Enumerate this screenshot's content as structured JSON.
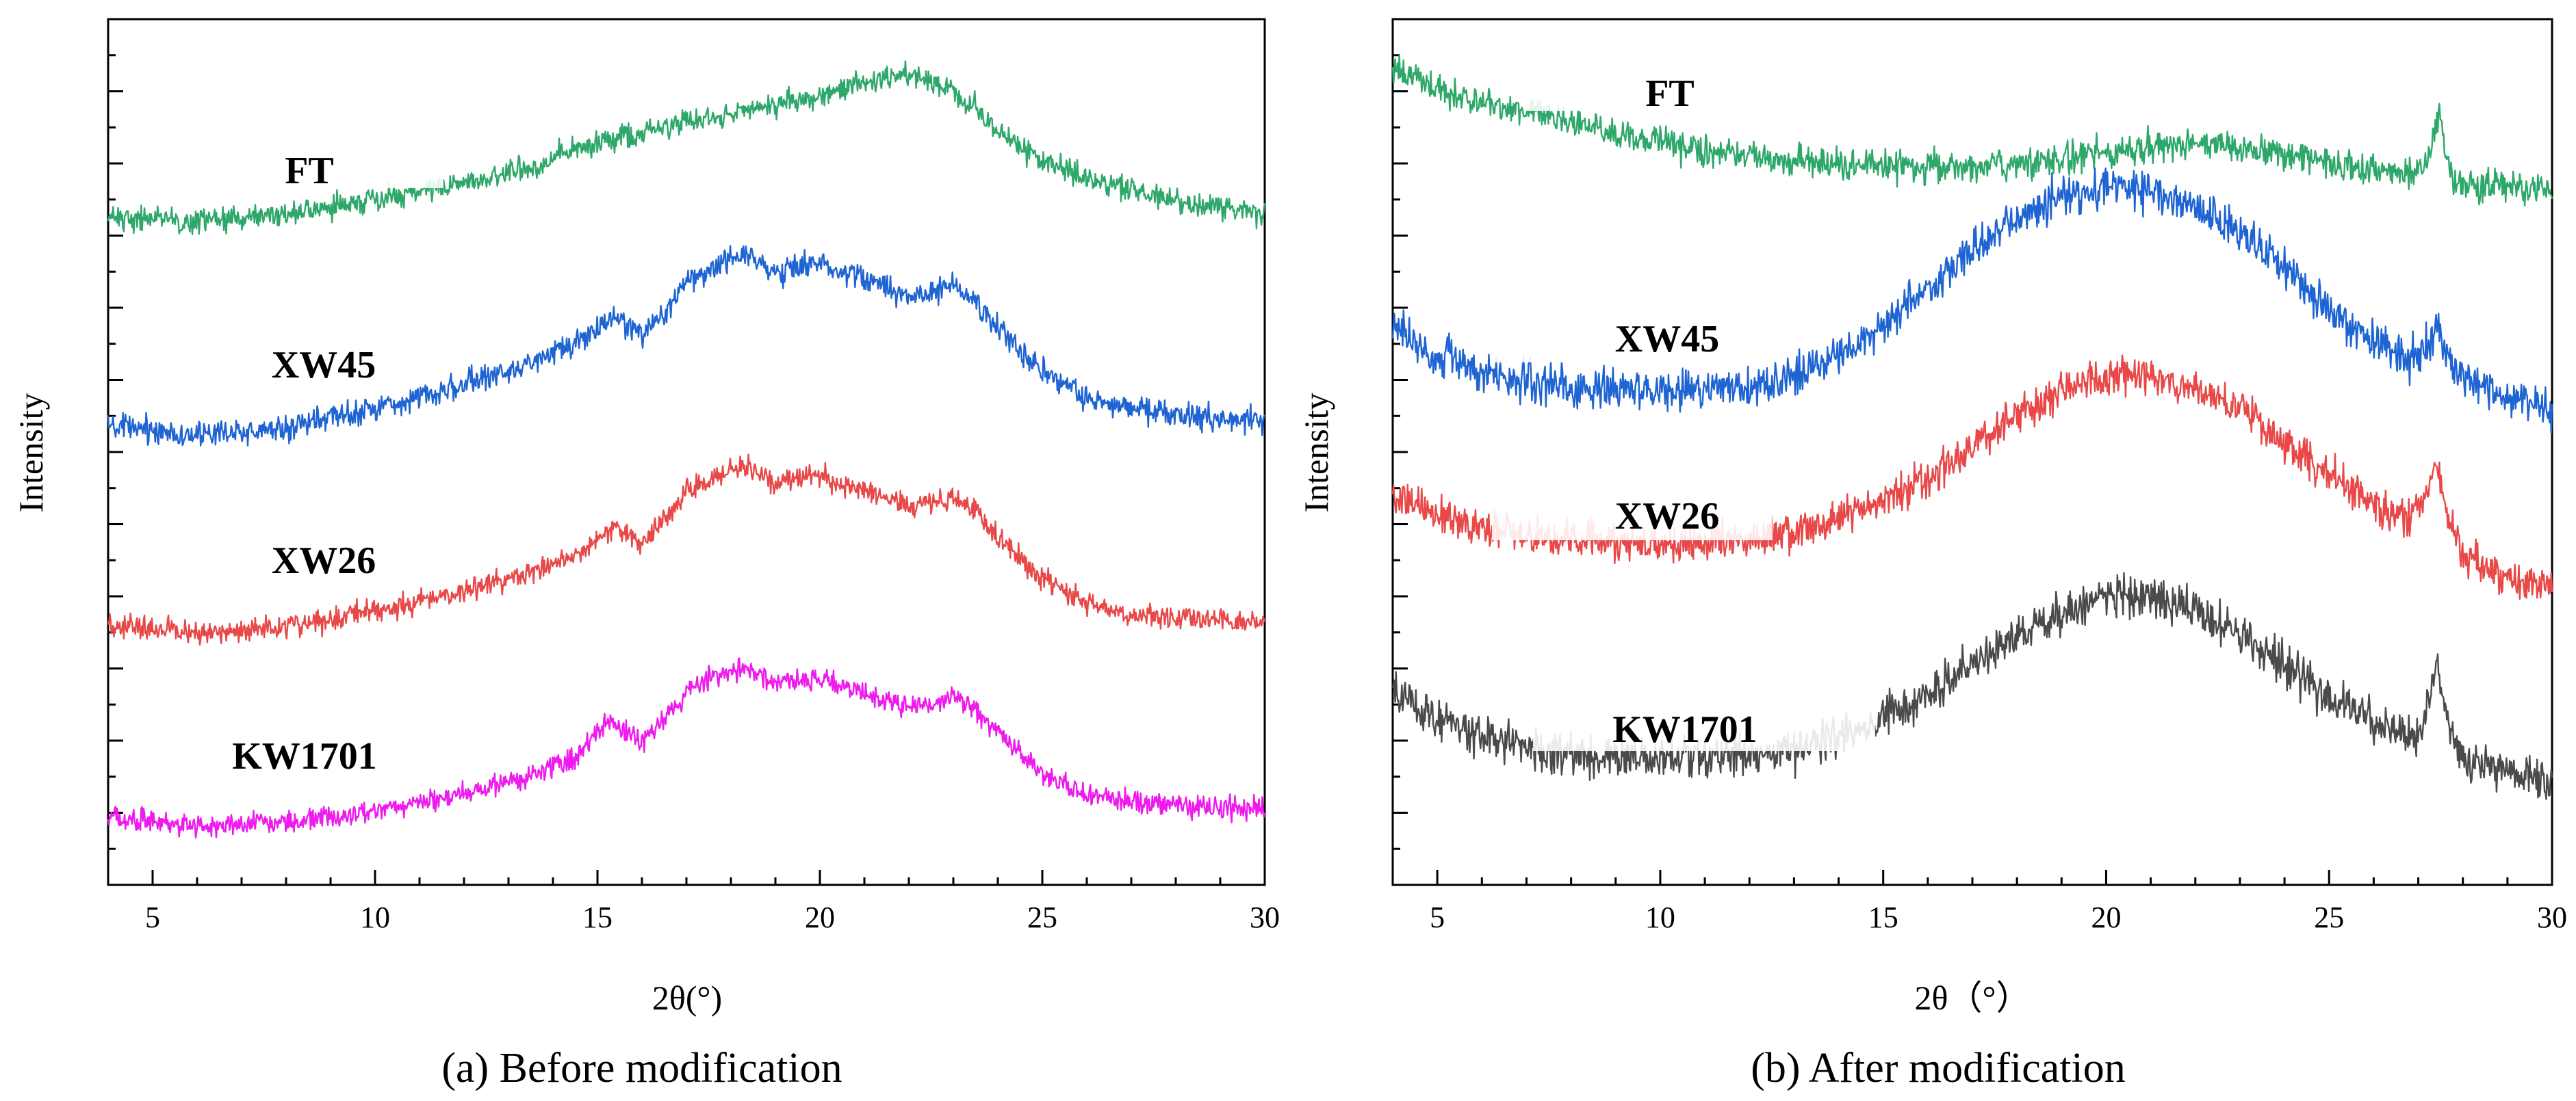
{
  "chart_data": [
    {
      "type": "line",
      "title": "",
      "caption": "(a) Before modification",
      "xlabel": "2θ(°)",
      "ylabel": "Intensity",
      "xlim": [
        4,
        30
      ],
      "ylim": [
        0,
        100
      ],
      "x_ticks": [
        "5",
        "10",
        "15",
        "20",
        "25",
        "30"
      ],
      "x_tick_values": [
        5,
        10,
        15,
        20,
        25,
        30
      ],
      "y_tick_labels_shown": false,
      "grid": false,
      "legend": "inline labels",
      "series": [
        {
          "name": "FT",
          "color": "#2ea86a",
          "x": [
            4,
            6,
            8,
            10,
            12,
            13.5,
            14.5,
            15.5,
            17,
            18.5,
            20,
            21,
            21.5,
            22,
            22.3,
            23,
            23.5,
            24,
            25,
            26,
            27,
            28,
            29,
            30
          ],
          "values": [
            77.3,
            76.6,
            77.5,
            79.1,
            81.1,
            82.8,
            85.1,
            86.3,
            88,
            89.7,
            91.1,
            92.6,
            93.4,
            93.6,
            93.4,
            91.5,
            89.7,
            87,
            83.6,
            81.5,
            80.2,
            79.1,
            78.2,
            77.6
          ]
        },
        {
          "name": "XW45",
          "color": "#1e64d2",
          "x": [
            4,
            5,
            6,
            8,
            10,
            12,
            13.5,
            14.5,
            15,
            15.4,
            16,
            16.5,
            17,
            17.5,
            18,
            18.3,
            19,
            19.5,
            20,
            21,
            22,
            22.5,
            23,
            23.5,
            24,
            25,
            26,
            27,
            28,
            29,
            30
          ],
          "values": [
            52.8,
            52.6,
            51.9,
            52.8,
            55.1,
            57.8,
            60.3,
            62.4,
            64.1,
            65.4,
            63.4,
            66.2,
            69.6,
            71.1,
            72.5,
            72.9,
            70.7,
            71.4,
            71.9,
            70,
            67.9,
            68.5,
            69.1,
            67.3,
            64.5,
            59.4,
            56.2,
            55,
            54.3,
            53.8,
            53.6
          ]
        },
        {
          "name": "XW26",
          "color": "#e84848",
          "x": [
            4,
            5,
            6,
            8,
            10,
            12,
            13.5,
            14.5,
            15,
            15.4,
            16,
            16.5,
            17,
            17.5,
            18,
            18.3,
            19,
            19.5,
            20,
            21,
            22,
            22.5,
            23,
            23.5,
            24,
            25,
            26,
            27,
            28,
            29,
            30
          ],
          "values": [
            29.9,
            29.7,
            29.1,
            29.7,
            31.7,
            33.8,
            36.1,
            38.1,
            39.8,
            41.5,
            39.4,
            42.2,
            45.3,
            46.7,
            47.9,
            48.3,
            46.5,
            47,
            47.3,
            45.5,
            43.6,
            44.2,
            44.8,
            43.2,
            40.2,
            35.4,
            32.3,
            31.3,
            30.8,
            30.4,
            30.3
          ]
        },
        {
          "name": "KW1701",
          "color": "#ee1aee",
          "x": [
            4,
            5,
            6,
            8,
            10,
            12,
            13.5,
            14.5,
            15,
            15.2,
            16,
            16.5,
            17,
            17.5,
            18,
            18.3,
            19,
            19.5,
            20,
            21,
            22,
            22.5,
            23,
            23.5,
            24,
            25,
            26,
            27,
            28,
            29,
            30
          ],
          "values": [
            7.8,
            7.4,
            6.8,
            7.2,
            8.5,
            10.6,
            12.6,
            14.8,
            17.7,
            19.1,
            16.5,
            19.1,
            22.3,
            23.9,
            24.7,
            25.1,
            23.3,
            23.6,
            23.8,
            22.1,
            20.5,
            21.2,
            21.9,
            20.3,
            17.5,
            13,
            10.4,
            9.6,
            9.1,
            8.8,
            8.7
          ]
        }
      ]
    },
    {
      "type": "line",
      "title": "",
      "caption": "(b) After modification",
      "xlabel": "2θ（°）",
      "ylabel": "Intensity",
      "xlim": [
        4,
        30
      ],
      "ylim": [
        0,
        100
      ],
      "x_ticks": [
        "5",
        "10",
        "15",
        "20",
        "25",
        "30"
      ],
      "x_tick_values": [
        5,
        10,
        15,
        20,
        25,
        30
      ],
      "y_tick_labels_shown": false,
      "grid": false,
      "legend": "inline labels",
      "series": [
        {
          "name": "FT",
          "color": "#2ea86a",
          "x": [
            4,
            5,
            6,
            7,
            8,
            9,
            10,
            11,
            12,
            14,
            16,
            18,
            19,
            20,
            21,
            22,
            23,
            24,
            25,
            26,
            26.8,
            27.1,
            27.3,
            27.45,
            27.6,
            27.8,
            28.2,
            29,
            30
          ],
          "values": [
            94.5,
            91.9,
            90.2,
            89.1,
            88,
            86.9,
            85.8,
            84.8,
            84.1,
            83.2,
            82.8,
            83.1,
            83.8,
            84.6,
            85.3,
            85.6,
            85.2,
            84.5,
            83.6,
            82.5,
            81.9,
            82.4,
            85.2,
            89.1,
            85.1,
            81.4,
            80.9,
            80.6,
            80.2
          ]
        },
        {
          "name": "XW45",
          "color": "#1e64d2",
          "x": [
            4,
            5,
            6,
            7,
            8,
            9,
            10,
            11,
            12,
            13,
            14,
            15,
            16,
            17,
            18,
            19,
            20,
            21,
            22,
            23,
            24,
            25,
            26,
            26.8,
            27.2,
            27.45,
            27.7,
            28,
            29,
            30
          ],
          "values": [
            64.5,
            61.1,
            59.2,
            58.1,
            57.3,
            57.1,
            57,
            57.4,
            57.4,
            58.9,
            61.1,
            64.4,
            68.7,
            73.3,
            77.1,
            79.4,
            80.8,
            80.3,
            78.3,
            75.2,
            71.2,
            66.7,
            62.5,
            60.8,
            62.6,
            64.6,
            60.4,
            58.5,
            56.4,
            55.3
          ]
        },
        {
          "name": "XW26",
          "color": "#e84848",
          "x": [
            4,
            5,
            6,
            7,
            8,
            9,
            10,
            11,
            12,
            13,
            14,
            15,
            16,
            17,
            18,
            19,
            20,
            21,
            22,
            23,
            24,
            25,
            26,
            26.8,
            27.1,
            27.4,
            27.7,
            28,
            29,
            30
          ],
          "values": [
            45.5,
            42.8,
            41.1,
            40.6,
            39.9,
            39.6,
            39.4,
            39.7,
            39.9,
            40.6,
            42.1,
            44.2,
            47,
            50.6,
            54.2,
            57,
            58.8,
            58.8,
            57.3,
            54.8,
            51.1,
            47.5,
            43.9,
            42.1,
            44.2,
            48.5,
            41.9,
            37.8,
            35.5,
            34.5
          ]
        },
        {
          "name": "KW1701",
          "color": "#4a4a4a",
          "x": [
            4,
            5,
            6,
            7,
            8,
            9,
            10,
            11,
            12,
            13,
            14,
            15,
            16,
            17,
            18,
            19,
            20,
            21,
            22,
            23,
            24,
            25,
            26,
            26.8,
            27.1,
            27.4,
            27.7,
            28,
            29,
            30
          ],
          "values": [
            22.1,
            19.2,
            17.2,
            15.9,
            15.1,
            14.8,
            14.8,
            14.9,
            15.1,
            15.6,
            16.9,
            19.1,
            22,
            25.4,
            28.5,
            31.5,
            33.5,
            33.3,
            31.7,
            29.1,
            25.4,
            21.9,
            18.8,
            16.9,
            18.5,
            25.4,
            17.9,
            14.4,
            12.7,
            11.6
          ]
        }
      ]
    }
  ]
}
